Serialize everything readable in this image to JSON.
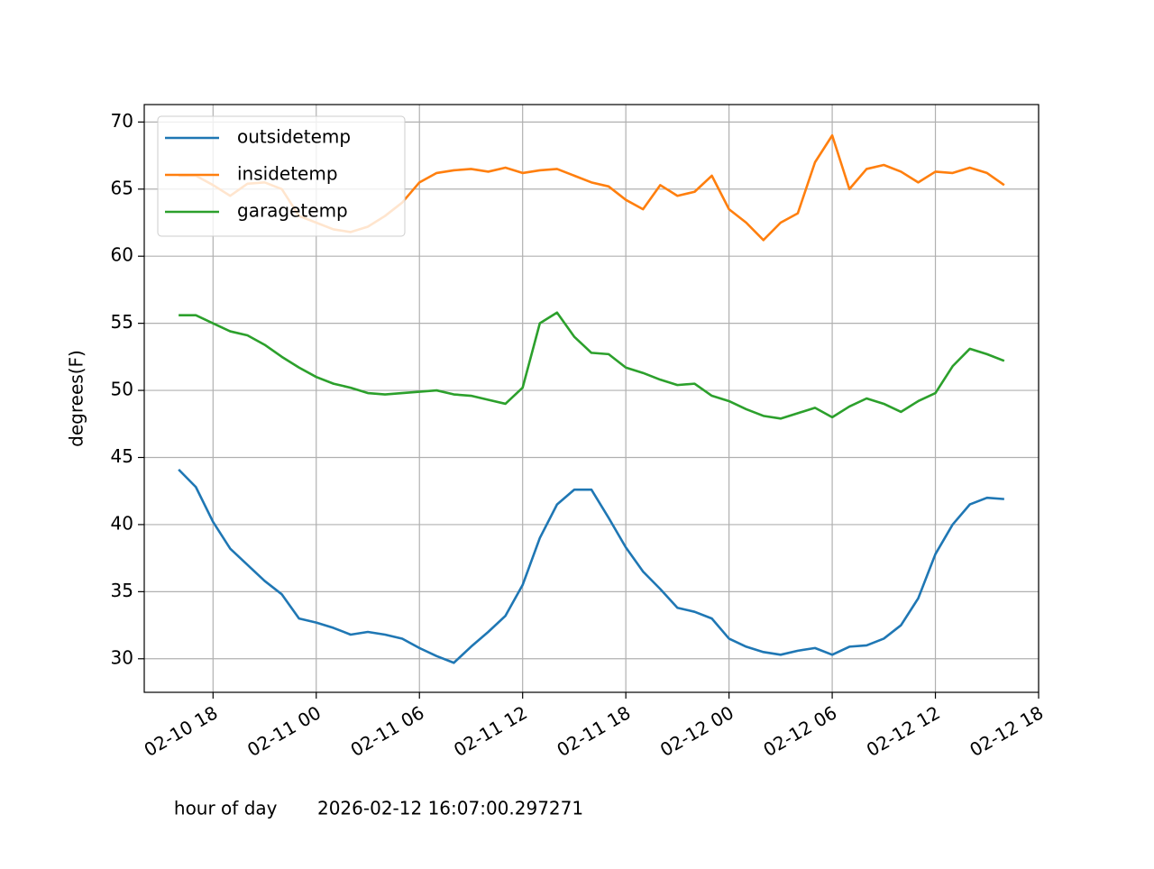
{
  "chart_data": {
    "type": "line",
    "xlabel": "hour of day       2026-02-12 16:07:00.297271",
    "ylabel": "degrees(F)",
    "x": [
      "02-10 16",
      "02-10 17",
      "02-10 18",
      "02-10 19",
      "02-10 20",
      "02-10 21",
      "02-10 22",
      "02-10 23",
      "02-11 00",
      "02-11 01",
      "02-11 02",
      "02-11 03",
      "02-11 04",
      "02-11 05",
      "02-11 06",
      "02-11 07",
      "02-11 08",
      "02-11 09",
      "02-11 10",
      "02-11 11",
      "02-11 12",
      "02-11 13",
      "02-11 14",
      "02-11 15",
      "02-11 16",
      "02-11 17",
      "02-11 18",
      "02-11 19",
      "02-11 20",
      "02-11 21",
      "02-11 22",
      "02-11 23",
      "02-12 00",
      "02-12 01",
      "02-12 02",
      "02-12 03",
      "02-12 04",
      "02-12 05",
      "02-12 06",
      "02-12 07",
      "02-12 08",
      "02-12 09",
      "02-12 10",
      "02-12 11",
      "02-12 12",
      "02-12 13",
      "02-12 14",
      "02-12 15",
      "02-12 16"
    ],
    "series": [
      {
        "name": "outsidetemp",
        "color": "#1f77b4",
        "values": [
          44.1,
          42.8,
          40.2,
          38.2,
          37.0,
          35.8,
          34.8,
          33.0,
          32.7,
          32.3,
          31.8,
          32.0,
          31.8,
          31.5,
          30.8,
          30.2,
          29.7,
          30.9,
          32.0,
          33.2,
          35.5,
          39.0,
          41.5,
          42.6,
          42.6,
          40.5,
          38.3,
          36.5,
          35.2,
          33.8,
          33.5,
          33.0,
          31.5,
          30.9,
          30.5,
          30.3,
          30.6,
          30.8,
          30.3,
          30.9,
          31.0,
          31.5,
          32.5,
          34.5,
          37.8,
          40.0,
          41.5,
          42.0,
          41.9
        ]
      },
      {
        "name": "insidetemp",
        "color": "#ff7f0e",
        "values": [
          66.0,
          66.0,
          65.3,
          64.5,
          65.4,
          65.5,
          65.0,
          63.0,
          62.5,
          62.0,
          61.8,
          62.2,
          63.0,
          64.0,
          65.5,
          66.2,
          66.4,
          66.5,
          66.3,
          66.6,
          66.2,
          66.4,
          66.5,
          66.0,
          65.5,
          65.2,
          64.2,
          63.5,
          65.3,
          64.5,
          64.8,
          66.0,
          63.5,
          62.5,
          61.2,
          62.5,
          63.2,
          67.0,
          69.0,
          65.0,
          66.5,
          66.8,
          66.3,
          65.5,
          66.3,
          66.2,
          66.6,
          66.2,
          65.3
        ]
      },
      {
        "name": "garagetemp",
        "color": "#2ca02c",
        "values": [
          55.6,
          55.6,
          55.0,
          54.4,
          54.1,
          53.4,
          52.5,
          51.7,
          51.0,
          50.5,
          50.2,
          49.8,
          49.7,
          49.8,
          49.9,
          50.0,
          49.7,
          49.6,
          49.3,
          49.0,
          50.2,
          55.0,
          55.8,
          54.0,
          52.8,
          52.7,
          51.7,
          51.3,
          50.8,
          50.4,
          50.5,
          49.6,
          49.2,
          48.6,
          48.1,
          47.9,
          48.3,
          48.7,
          48.0,
          48.8,
          49.4,
          49.0,
          48.4,
          49.2,
          49.8,
          51.8,
          53.1,
          52.7,
          52.2
        ]
      }
    ],
    "xlim": [
      "02-10 14",
      "02-12 18"
    ],
    "xticks": [
      "02-10 18",
      "02-11 00",
      "02-11 06",
      "02-11 12",
      "02-11 18",
      "02-12 00",
      "02-12 06",
      "02-12 12",
      "02-12 18"
    ],
    "ylim": [
      27.5,
      71.3
    ],
    "yticks": [
      30,
      35,
      40,
      45,
      50,
      55,
      60,
      65,
      70
    ],
    "grid": true,
    "legend": "upper left"
  }
}
